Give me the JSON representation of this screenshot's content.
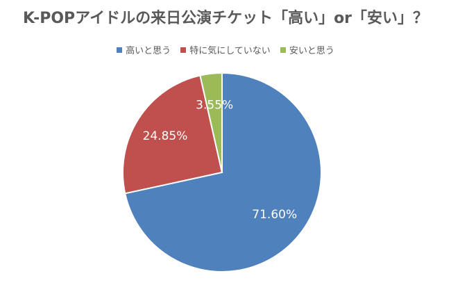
{
  "chart_data": {
    "type": "pie",
    "title": "K-POPアイドルの来日公演チケット「高い」or「安い」？",
    "legend_position": "top",
    "slices": [
      {
        "label": "高いと思う",
        "value": 71.6,
        "display": "71.60%",
        "color": "#4F81BD"
      },
      {
        "label": "特に気にしていない",
        "value": 24.85,
        "display": "24.85%",
        "color": "#C0504D"
      },
      {
        "label": "安いと思う",
        "value": 3.55,
        "display": "3.55%",
        "color": "#9BBB59"
      }
    ]
  }
}
